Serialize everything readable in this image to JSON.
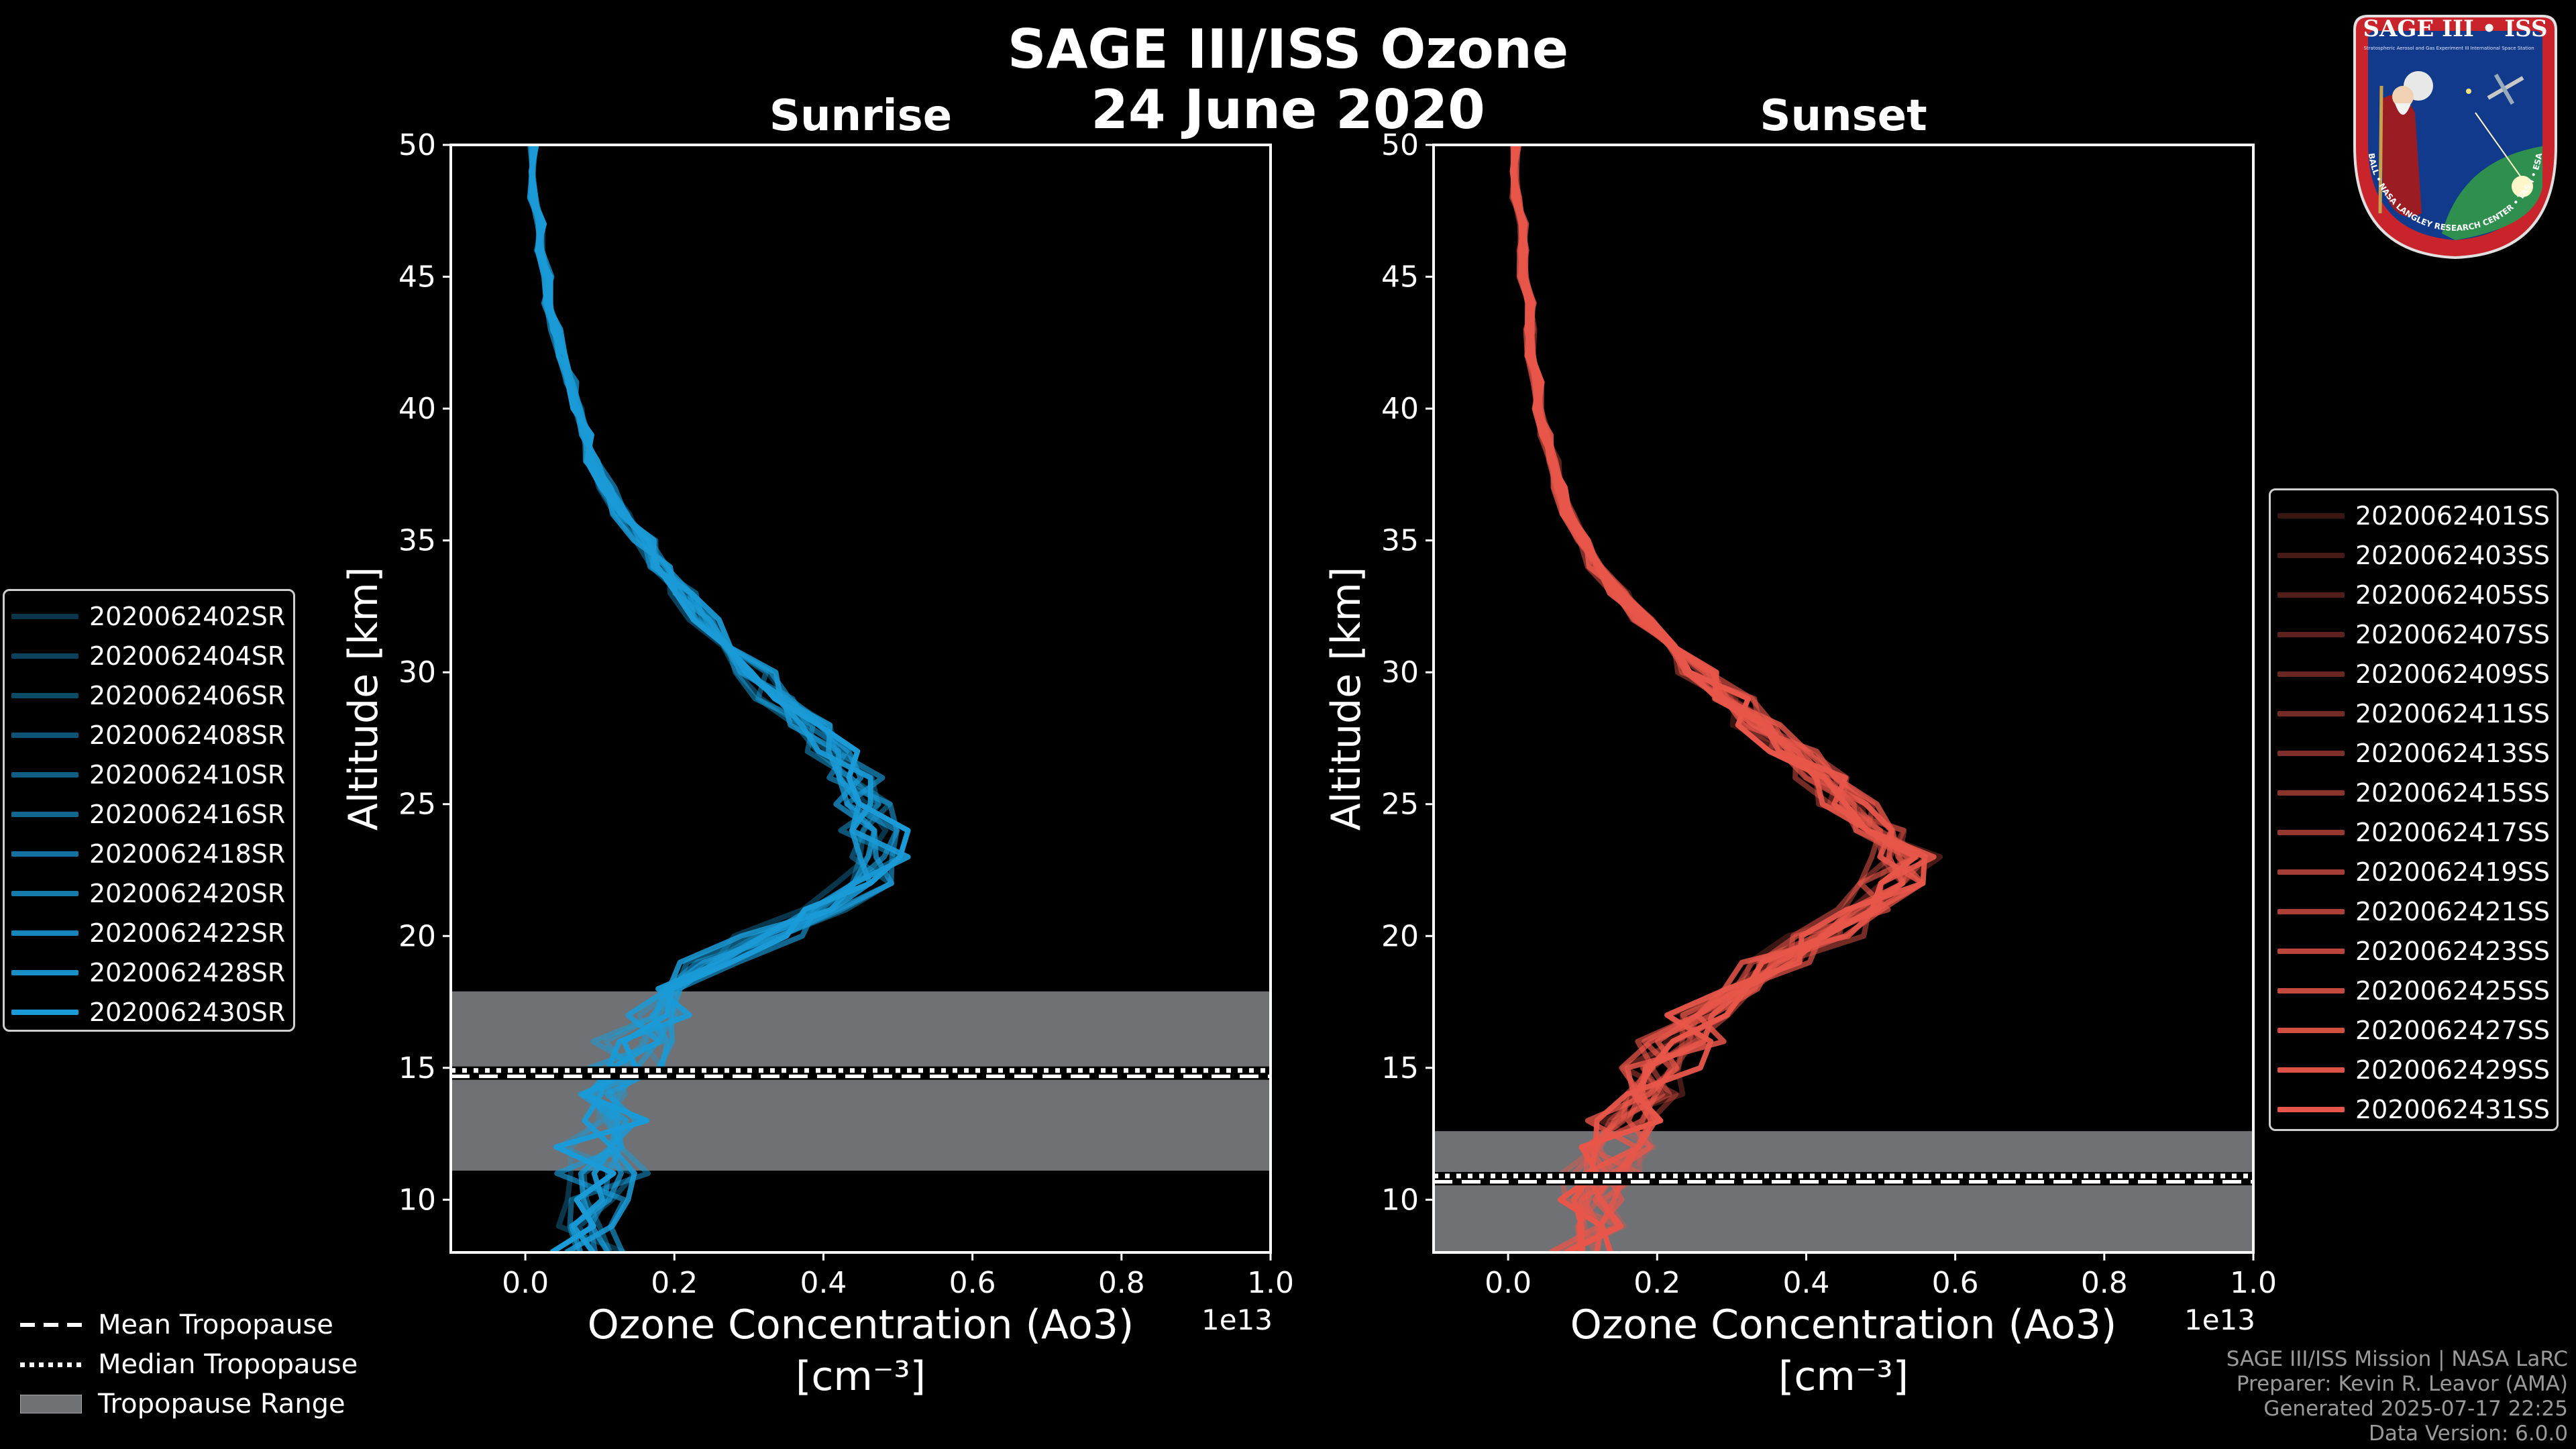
{
  "figure": {
    "title_line1": "SAGE III/ISS Ozone",
    "title_line2": "24 June 2020"
  },
  "logo": {
    "name": "SAGE III • ISS",
    "ring_text": "BALL • NASA LANGLEY RESEARCH CENTER • TAS-I • ESA",
    "sub_text_1": "Stratospheric Aerosol and Gas Experiment III",
    "sub_text_2": "International Space Station"
  },
  "colors": {
    "sunrise": "#1a9ad6",
    "sunset": "#e8564a",
    "tropopause_fill": "#6f7175",
    "axis": "#ffffff",
    "background": "#000000"
  },
  "chart_data": [
    {
      "type": "line",
      "title": "Sunrise",
      "xlabel_line1": "Ozone Concentration (Ao3)",
      "xlabel_line2": "[cm⁻³]",
      "x_offset_label": "1e13",
      "ylabel": "Altitude [km]",
      "xlim": [
        -0.1,
        1.0
      ],
      "ylim": [
        8,
        50
      ],
      "xticks": [
        0.0,
        0.2,
        0.4,
        0.6,
        0.8,
        1.0
      ],
      "xtick_labels": [
        "0.0",
        "0.2",
        "0.4",
        "0.6",
        "0.8",
        "1.0"
      ],
      "yticks": [
        10,
        15,
        20,
        25,
        30,
        35,
        40,
        45,
        50
      ],
      "ytick_labels": [
        "10",
        "15",
        "20",
        "25",
        "30",
        "35",
        "40",
        "45",
        "50"
      ],
      "tropopause": {
        "mean": 14.7,
        "median": 14.9,
        "range": [
          11.1,
          17.9
        ]
      },
      "base_profile": {
        "altitude": [
          8,
          9,
          10,
          11,
          12,
          13,
          14,
          15,
          16,
          17,
          18,
          19,
          20,
          21,
          22,
          23,
          24,
          25,
          26,
          27,
          28,
          29,
          30,
          31,
          32,
          33,
          34,
          35,
          36,
          37,
          38,
          39,
          40,
          41,
          42,
          43,
          44,
          45,
          46,
          47,
          48,
          49,
          50
        ],
        "value": [
          0.08,
          0.08,
          0.09,
          0.09,
          0.1,
          0.11,
          0.12,
          0.13,
          0.15,
          0.17,
          0.2,
          0.25,
          0.33,
          0.4,
          0.45,
          0.47,
          0.47,
          0.46,
          0.44,
          0.41,
          0.38,
          0.34,
          0.31,
          0.27,
          0.24,
          0.21,
          0.18,
          0.16,
          0.13,
          0.11,
          0.09,
          0.08,
          0.07,
          0.06,
          0.05,
          0.04,
          0.03,
          0.03,
          0.02,
          0.02,
          0.01,
          0.01,
          0.01
        ]
      },
      "series": [
        {
          "name": "2020062402SR",
          "opacity": 0.35
        },
        {
          "name": "2020062404SR",
          "opacity": 0.42
        },
        {
          "name": "2020062406SR",
          "opacity": 0.48
        },
        {
          "name": "2020062408SR",
          "opacity": 0.55
        },
        {
          "name": "2020062410SR",
          "opacity": 0.61
        },
        {
          "name": "2020062416SR",
          "opacity": 0.67
        },
        {
          "name": "2020062418SR",
          "opacity": 0.74
        },
        {
          "name": "2020062420SR",
          "opacity": 0.8
        },
        {
          "name": "2020062422SR",
          "opacity": 0.87
        },
        {
          "name": "2020062428SR",
          "opacity": 0.93
        },
        {
          "name": "2020062430SR",
          "opacity": 1.0
        }
      ]
    },
    {
      "type": "line",
      "title": "Sunset",
      "xlabel_line1": "Ozone Concentration (Ao3)",
      "xlabel_line2": "[cm⁻³]",
      "x_offset_label": "1e13",
      "ylabel": "Altitude [km]",
      "xlim": [
        -0.1,
        1.0
      ],
      "ylim": [
        8,
        50
      ],
      "xticks": [
        0.0,
        0.2,
        0.4,
        0.6,
        0.8,
        1.0
      ],
      "xtick_labels": [
        "0.0",
        "0.2",
        "0.4",
        "0.6",
        "0.8",
        "1.0"
      ],
      "yticks": [
        10,
        15,
        20,
        25,
        30,
        35,
        40,
        45,
        50
      ],
      "ytick_labels": [
        "10",
        "15",
        "20",
        "25",
        "30",
        "35",
        "40",
        "45",
        "50"
      ],
      "tropopause": {
        "mean": 10.7,
        "median": 10.9,
        "range": [
          8.0,
          12.6
        ]
      },
      "base_profile": {
        "altitude": [
          8,
          9,
          10,
          11,
          12,
          13,
          14,
          15,
          16,
          17,
          18,
          19,
          20,
          21,
          22,
          23,
          24,
          25,
          26,
          27,
          28,
          29,
          30,
          31,
          32,
          33,
          34,
          35,
          36,
          37,
          38,
          39,
          40,
          41,
          42,
          43,
          44,
          45,
          46,
          47,
          48,
          49,
          50
        ],
        "value": [
          0.09,
          0.1,
          0.11,
          0.12,
          0.13,
          0.15,
          0.17,
          0.19,
          0.22,
          0.26,
          0.3,
          0.36,
          0.42,
          0.48,
          0.52,
          0.53,
          0.5,
          0.46,
          0.42,
          0.38,
          0.34,
          0.3,
          0.26,
          0.22,
          0.18,
          0.15,
          0.12,
          0.1,
          0.08,
          0.07,
          0.06,
          0.05,
          0.04,
          0.04,
          0.03,
          0.03,
          0.03,
          0.02,
          0.02,
          0.02,
          0.01,
          0.01,
          0.01
        ]
      },
      "series": [
        {
          "name": "2020062401SS",
          "opacity": 0.25
        },
        {
          "name": "2020062403SS",
          "opacity": 0.3
        },
        {
          "name": "2020062405SS",
          "opacity": 0.35
        },
        {
          "name": "2020062407SS",
          "opacity": 0.4
        },
        {
          "name": "2020062409SS",
          "opacity": 0.45
        },
        {
          "name": "2020062411SS",
          "opacity": 0.5
        },
        {
          "name": "2020062413SS",
          "opacity": 0.55
        },
        {
          "name": "2020062415SS",
          "opacity": 0.6
        },
        {
          "name": "2020062417SS",
          "opacity": 0.65
        },
        {
          "name": "2020062419SS",
          "opacity": 0.7
        },
        {
          "name": "2020062421SS",
          "opacity": 0.75
        },
        {
          "name": "2020062423SS",
          "opacity": 0.8
        },
        {
          "name": "2020062425SS",
          "opacity": 0.85
        },
        {
          "name": "2020062427SS",
          "opacity": 0.9
        },
        {
          "name": "2020062429SS",
          "opacity": 0.95
        },
        {
          "name": "2020062431SS",
          "opacity": 1.0
        }
      ]
    }
  ],
  "tropopause_legend": {
    "mean": "Mean Tropopause",
    "median": "Median Tropopause",
    "range": "Tropopause Range"
  },
  "footer": {
    "line1": "SAGE III/ISS Mission | NASA LaRC",
    "line2": "Preparer: Kevin R. Leavor (AMA)",
    "line3": "Generated 2025-07-17 22:25",
    "line4": "Data Version: 6.0.0"
  }
}
